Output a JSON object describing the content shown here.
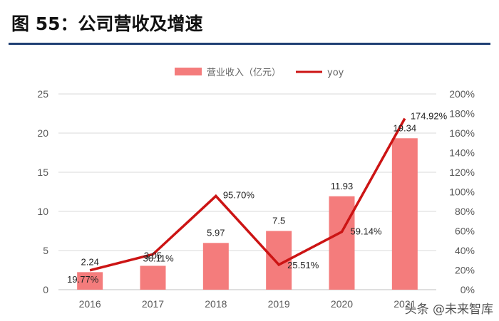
{
  "header": {
    "title": "图 55：公司营收及增速"
  },
  "watermark": {
    "text": "头条 @未来智库"
  },
  "colors": {
    "bar": "#f47c7c",
    "line": "#cc1414",
    "grid": "#d9d9d9",
    "rule": "#1f3f73"
  },
  "chart_data": {
    "type": "bar",
    "title": "公司营收及增速",
    "categories": [
      "2016",
      "2017",
      "2018",
      "2019",
      "2020",
      "2021"
    ],
    "series": [
      {
        "name": "营业收入（亿元）",
        "kind": "bar",
        "axis": "left",
        "values": [
          2.24,
          3.05,
          5.97,
          7.5,
          11.93,
          19.34
        ],
        "labels": [
          "2.24",
          "3.05",
          "5.97",
          "7.5",
          "11.93",
          "19.34"
        ]
      },
      {
        "name": "yoy",
        "kind": "line",
        "axis": "right",
        "values": [
          19.77,
          36.11,
          95.7,
          25.51,
          59.14,
          174.92
        ],
        "labels": [
          "19.77%",
          "36.11%",
          "95.70%",
          "25.51%",
          "59.14%",
          "174.92%"
        ]
      }
    ],
    "y_left": {
      "min": 0,
      "max": 25,
      "ticks": [
        "0",
        "5",
        "10",
        "15",
        "20",
        "25"
      ]
    },
    "y_right": {
      "min": 0,
      "max": 200,
      "ticks": [
        "0%",
        "20%",
        "40%",
        "60%",
        "80%",
        "100%",
        "120%",
        "140%",
        "160%",
        "180%",
        "200%"
      ]
    },
    "grid": true,
    "legend_position": "top"
  }
}
